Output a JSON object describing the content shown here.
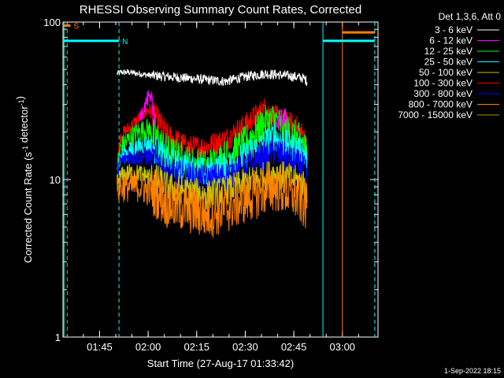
{
  "chart_data": {
    "type": "line",
    "title": "RHESSI Observing Summary Count Rates, Corrected",
    "xlabel": "Start Time (27-Aug-17 01:33:42)",
    "ylabel": "Corrected Count Rate (s",
    "ylabel_sup": "-1",
    "ylabel_mid": " detector",
    "ylabel_end": ")",
    "y_scale": "log",
    "ylim": [
      1,
      100
    ],
    "xlim": [
      "01:33:42",
      "03:11:00"
    ],
    "x_tick_labels": [
      "01:45",
      "02:00",
      "02:15",
      "02:30",
      "02:45",
      "03:00"
    ],
    "x_tick_minutes": [
      105,
      120,
      135,
      150,
      165,
      180
    ],
    "y_tick_labels": [
      "1",
      "10",
      "100"
    ],
    "y_tick_values": [
      1,
      10,
      100
    ],
    "legend_header": "Det 1,3,6, Att 0",
    "legend": [
      {
        "label": "3 - 6 keV",
        "color": "#ffffff"
      },
      {
        "label": "6 - 12 keV",
        "color": "#ff00ff"
      },
      {
        "label": "12 - 25 keV",
        "color": "#00ff00"
      },
      {
        "label": "25 - 50 keV",
        "color": "#00ffff"
      },
      {
        "label": "50 - 100 keV",
        "color": "#c8c800"
      },
      {
        "label": "100 - 300 keV",
        "color": "#ff0000"
      },
      {
        "label": "300 - 800 keV",
        "color": "#0000ff"
      },
      {
        "label": "800 - 7000 keV",
        "color": "#ff8000"
      },
      {
        "label": "7000 - 15000 keV",
        "color": "#b8860b"
      }
    ],
    "flags": [
      {
        "label": "S",
        "color": "#ff8000",
        "start": "01:34",
        "end": "01:36",
        "y": 95
      },
      {
        "label": "N",
        "color": "#00ffff",
        "start": "01:34",
        "end": "01:51",
        "y": 76
      }
    ],
    "timestamp": "1-Sep-2022 18:15",
    "series": [
      {
        "legend_index": 0,
        "color": "#ffffff",
        "noise": 0.02,
        "x": [
          1.84,
          1.86,
          1.9,
          1.95,
          2.0,
          2.1,
          2.2,
          2.3,
          2.4,
          2.5,
          2.6,
          2.7,
          2.8,
          2.82
        ],
        "y": [
          47,
          48,
          48,
          47,
          46,
          45,
          44,
          43,
          42,
          45,
          47,
          46,
          44,
          42
        ]
      },
      {
        "legend_index": 5,
        "color": "#ff0000",
        "noise": 0.05,
        "x": [
          1.84,
          1.86,
          1.9,
          1.95,
          2.0,
          2.05,
          2.1,
          2.2,
          2.3,
          2.4,
          2.5,
          2.6,
          2.65,
          2.7,
          2.75,
          2.8,
          2.82
        ],
        "y": [
          12,
          19,
          21,
          24,
          28,
          24,
          19,
          16,
          16,
          18,
          22,
          28,
          25,
          23,
          22,
          19,
          15
        ]
      },
      {
        "legend_index": 2,
        "color": "#00ff00",
        "noise": 0.07,
        "x": [
          1.84,
          1.86,
          1.9,
          1.95,
          2.0,
          2.05,
          2.1,
          2.2,
          2.3,
          2.4,
          2.5,
          2.6,
          2.65,
          2.7,
          2.75,
          2.8,
          2.82
        ],
        "y": [
          12,
          16,
          18,
          20,
          21,
          18,
          15,
          13,
          12,
          14,
          17,
          23,
          24,
          21,
          19,
          17,
          14
        ]
      },
      {
        "legend_index": 3,
        "color": "#00ffff",
        "noise": 0.06,
        "x": [
          1.84,
          1.86,
          1.9,
          1.95,
          2.0,
          2.05,
          2.1,
          2.2,
          2.3,
          2.4,
          2.5,
          2.6,
          2.65,
          2.7,
          2.75,
          2.8,
          2.82
        ],
        "y": [
          12,
          14,
          15,
          16,
          17,
          15,
          13,
          12,
          11,
          12,
          14,
          17,
          19,
          17,
          16,
          15,
          13
        ]
      },
      {
        "legend_index": 6,
        "color": "#0000ff",
        "noise": 0.06,
        "x": [
          1.84,
          1.86,
          1.9,
          1.95,
          2.0,
          2.05,
          2.1,
          2.2,
          2.3,
          2.4,
          2.5,
          2.6,
          2.65,
          2.7,
          2.75,
          2.8,
          2.82
        ],
        "y": [
          11,
          13,
          14,
          14,
          14,
          13,
          11,
          10.5,
          10,
          10.5,
          12,
          14,
          15,
          14,
          13,
          12,
          10
        ]
      },
      {
        "legend_index": 4,
        "color": "#c8c800",
        "noise": 0.06,
        "x": [
          1.84,
          1.86,
          1.9,
          1.95,
          2.0,
          2.05,
          2.1,
          2.2,
          2.3,
          2.4,
          2.5,
          2.6,
          2.65,
          2.7,
          2.75,
          2.8,
          2.82
        ],
        "y": [
          9.5,
          10.5,
          11,
          11,
          10.5,
          10,
          9,
          8.5,
          8,
          8.5,
          9.5,
          10.5,
          11,
          10.5,
          10,
          9.5,
          8.5
        ]
      },
      {
        "legend_index": 7,
        "color": "#ff8000",
        "noise": 0.1,
        "x": [
          1.84,
          1.86,
          1.9,
          1.95,
          2.0,
          2.05,
          2.1,
          2.2,
          2.3,
          2.4,
          2.5,
          2.6,
          2.65,
          2.7,
          2.75,
          2.8,
          2.82
        ],
        "y": [
          8.5,
          9,
          9,
          9,
          8.5,
          8,
          7,
          6.5,
          6,
          6.5,
          7.5,
          8.5,
          9,
          8.5,
          8,
          7,
          6.5
        ]
      },
      {
        "legend_index": 1,
        "color": "#ff00ff",
        "noise": 0.05,
        "x": [
          1.96,
          1.98,
          2.0,
          2.02,
          2.04
        ],
        "y": [
          25,
          29,
          33,
          30,
          25
        ]
      },
      {
        "legend_index": 1,
        "color": "#ff00ff",
        "noise": 0.04,
        "x": [
          2.66,
          2.68,
          2.7,
          2.72
        ],
        "y": [
          22,
          24,
          25,
          23
        ]
      }
    ],
    "attenuator_lines": [
      {
        "x": "01:34",
        "color": "#00ffff",
        "style": "solid"
      },
      {
        "x": "01:35",
        "color": "#ff8000",
        "style": "dashed"
      },
      {
        "x": "01:51",
        "color": "#00ffff",
        "style": "dashed"
      },
      {
        "x": "02:54",
        "color": "#00ffff",
        "style": "solid"
      },
      {
        "x": "03:00",
        "color": "#ff8000",
        "style": "solid"
      },
      {
        "x": "03:10",
        "color": "#00ffff",
        "style": "dashed"
      }
    ],
    "bars_right": [
      {
        "color": "#00ffff",
        "start": "02:54",
        "end": "03:10",
        "y": 76
      },
      {
        "color": "#ff8000",
        "start": "03:00",
        "end": "03:10",
        "y": 86
      }
    ]
  }
}
